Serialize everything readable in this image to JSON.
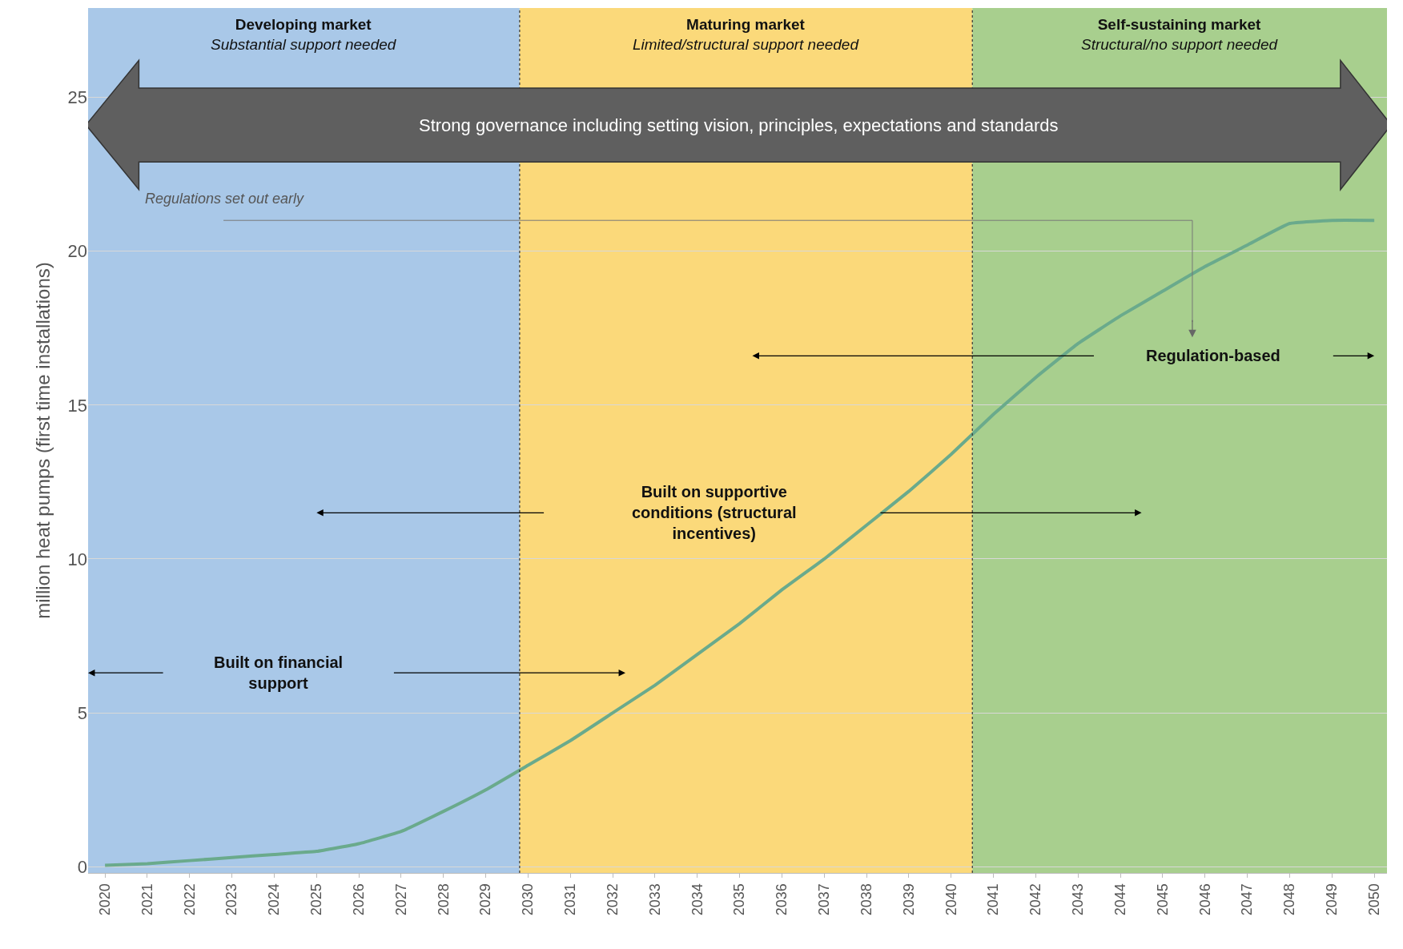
{
  "chart_data": {
    "type": "line",
    "ylabel": "million heat pumps (first time installations)",
    "x": [
      2020,
      2021,
      2022,
      2023,
      2024,
      2025,
      2026,
      2027,
      2028,
      2029,
      2030,
      2031,
      2032,
      2033,
      2034,
      2035,
      2036,
      2037,
      2038,
      2039,
      2040,
      2041,
      2042,
      2043,
      2044,
      2045,
      2046,
      2047,
      2048,
      2049,
      2050
    ],
    "series": [
      {
        "color": "#6aaa8c",
        "values": [
          0.05,
          0.1,
          0.2,
          0.3,
          0.4,
          0.5,
          0.75,
          1.15,
          1.8,
          2.5,
          3.3,
          4.1,
          5.0,
          5.9,
          6.9,
          7.9,
          9.0,
          10.0,
          11.1,
          12.2,
          13.4,
          14.7,
          15.9,
          17.0,
          17.9,
          18.7,
          19.5,
          20.2,
          20.9,
          21.0,
          21.0
        ]
      }
    ],
    "xlim": [
      2019.6,
      2050.3
    ],
    "xticks": [
      2020,
      2021,
      2022,
      2023,
      2024,
      2025,
      2026,
      2027,
      2028,
      2029,
      2030,
      2031,
      2032,
      2033,
      2034,
      2035,
      2036,
      2037,
      2038,
      2039,
      2040,
      2041,
      2042,
      2043,
      2044,
      2045,
      2046,
      2047,
      2048,
      2049,
      2050
    ],
    "ylim": [
      -0.2,
      27.9
    ],
    "yticks": [
      0,
      5,
      10,
      15,
      20,
      25
    ],
    "grid": "y",
    "marker": "none",
    "line_style": "solid",
    "legend": false,
    "bands": [
      {
        "axis": "x",
        "from": 2019.6,
        "to": 2029.8,
        "label": "Developing market\nSubstantial support needed",
        "color": "#a9c8e8"
      },
      {
        "axis": "x",
        "from": 2029.8,
        "to": 2040.5,
        "label": "Maturing market\nLimited/structural support needed",
        "color": "#fbd97a"
      },
      {
        "axis": "x",
        "from": 2040.5,
        "to": 2050.3,
        "label": "Self-sustaining market\nStructural/no support needed",
        "color": "#a8cf8e"
      }
    ],
    "ref_lines": [
      {
        "axis": "x",
        "value": 2029.8,
        "line_style": "dotted",
        "color": "#333333"
      },
      {
        "axis": "x",
        "value": 2040.5,
        "line_style": "dotted",
        "color": "#333333"
      }
    ],
    "annotations": [
      "Strong governance including setting vision, principles, expectations and standards",
      "Regulations set out early",
      "Regulation-based",
      "Built on supportive\nconditions (structural\nincentives)",
      "Built on financial\nsupport"
    ]
  }
}
